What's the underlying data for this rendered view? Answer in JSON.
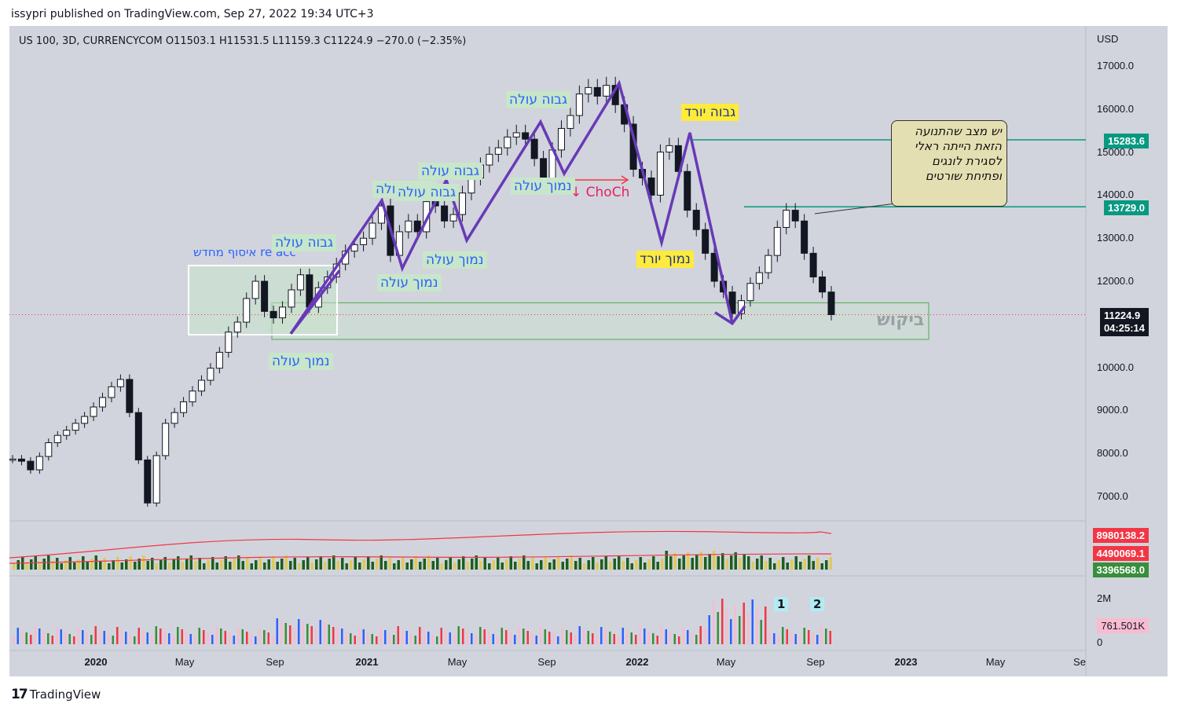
{
  "header": "issypri published on TradingView.com, Sep 27, 2022 19:34 UTC+3",
  "footer": {
    "logo": "17",
    "brand": "TradingView"
  },
  "symbol_line": "US 100, 3D, CURRENCYCOM  O11503.1  H11531.5  L11159.3  C11224.9  −270.0 (−2.35%)",
  "colors": {
    "up": "#131722",
    "down": "#131722",
    "purple": "#673ab7",
    "teal": "#089981",
    "red": "#f23645",
    "green_vol": "#388e3c",
    "pink_vol": "#f8bbd0",
    "blue_vol": "#2962ff",
    "background": "#d1d4dc"
  },
  "annotations": {
    "re_acc": "re acc איסוף מחדש",
    "l1_high": "גבוה עולה",
    "l1_low": "נמוך עולה",
    "l2_high": "גבוה עולה",
    "l2_low": "נמוך עולה",
    "l3_high": "גבוה עולה",
    "l3_low": "נמוך עולה",
    "l4_high": "גבוה עולה",
    "l4_low": "נמוך עולה",
    "l5_high": "גבוה עולה",
    "down_high": "גבוה יורד",
    "down_low": "נמוך יורד",
    "choch": "↓ ChoCh",
    "demand": "ביקוש",
    "note": "יש מצב שהתנועה הזאת הייתה ראלי לסגירת לונגים ופתיחת שורטים",
    "wave1": "1",
    "wave2": "2"
  },
  "price_tags": {
    "p1": "15283.6",
    "p2": "13729.0",
    "current": "11224.9",
    "countdown": "04:25:14",
    "vol_ma_long": "8980138.2",
    "vol_ma_short": "4490069.1",
    "vol_now": "3396568.0",
    "sub_vol": "761.501K"
  },
  "currency": "USD",
  "y_ticks": [
    "17000.0",
    "16000.0",
    "15000.0",
    "14000.0",
    "13000.0",
    "12000.0",
    "10000.0",
    "9000.0",
    "8000.0",
    "7000.0"
  ],
  "sub_ticks": [
    "2M",
    "0"
  ],
  "x_ticks": [
    {
      "label": "2020",
      "bold": true
    },
    {
      "label": "May",
      "bold": false
    },
    {
      "label": "Sep",
      "bold": false
    },
    {
      "label": "2021",
      "bold": true
    },
    {
      "label": "May",
      "bold": false
    },
    {
      "label": "Sep",
      "bold": false
    },
    {
      "label": "2022",
      "bold": true
    },
    {
      "label": "May",
      "bold": false
    },
    {
      "label": "Sep",
      "bold": false
    },
    {
      "label": "2023",
      "bold": true
    },
    {
      "label": "May",
      "bold": false
    },
    {
      "label": "Se",
      "bold": false
    }
  ],
  "chart_data": {
    "type": "candlestick",
    "title": "US 100, 3D, CURRENCYCOM",
    "ylabel": "USD",
    "ylim": [
      6500,
      17500
    ],
    "ohlc_last": {
      "open": 11503.1,
      "high": 11531.5,
      "low": 11159.3,
      "close": 11224.9,
      "change": -270.0,
      "change_pct": -2.35
    },
    "series": [
      {
        "name": "close",
        "values": [
          7870,
          7820,
          7620,
          7930,
          8250,
          8420,
          8540,
          8700,
          8860,
          9080,
          9300,
          9550,
          9720,
          8950,
          7850,
          6850,
          7950,
          8700,
          8950,
          9200,
          9450,
          9700,
          9980,
          10350,
          10820,
          11050,
          11600,
          12000,
          11300,
          11150,
          11400,
          11800,
          12150,
          11400,
          11850,
          12100,
          12400,
          12700,
          12850,
          13000,
          13350,
          13750,
          12600,
          13150,
          13400,
          13150,
          13850,
          13750,
          13400,
          13550,
          14050,
          14400,
          14700,
          14950,
          15100,
          15350,
          15450,
          15300,
          14850,
          14350,
          15050,
          15550,
          15850,
          16350,
          16500,
          16300,
          16550,
          16100,
          15650,
          14600,
          14400,
          14000,
          15000,
          15150,
          14550,
          13650,
          13200,
          12650,
          12000,
          11750,
          11250,
          11550,
          11950,
          12200,
          12600,
          13250,
          13650,
          13400,
          12650,
          12100,
          11750,
          11225
        ]
      }
    ],
    "levels": [
      15283.6,
      13729.0
    ],
    "demand_zone": [
      10650,
      11500
    ],
    "volume": {
      "ma_long": 8980138.2,
      "ma_short": 4490069.1,
      "current": 3396568.0
    },
    "sub_volume": {
      "current": "761.501K",
      "ymax_label": "2M"
    }
  }
}
